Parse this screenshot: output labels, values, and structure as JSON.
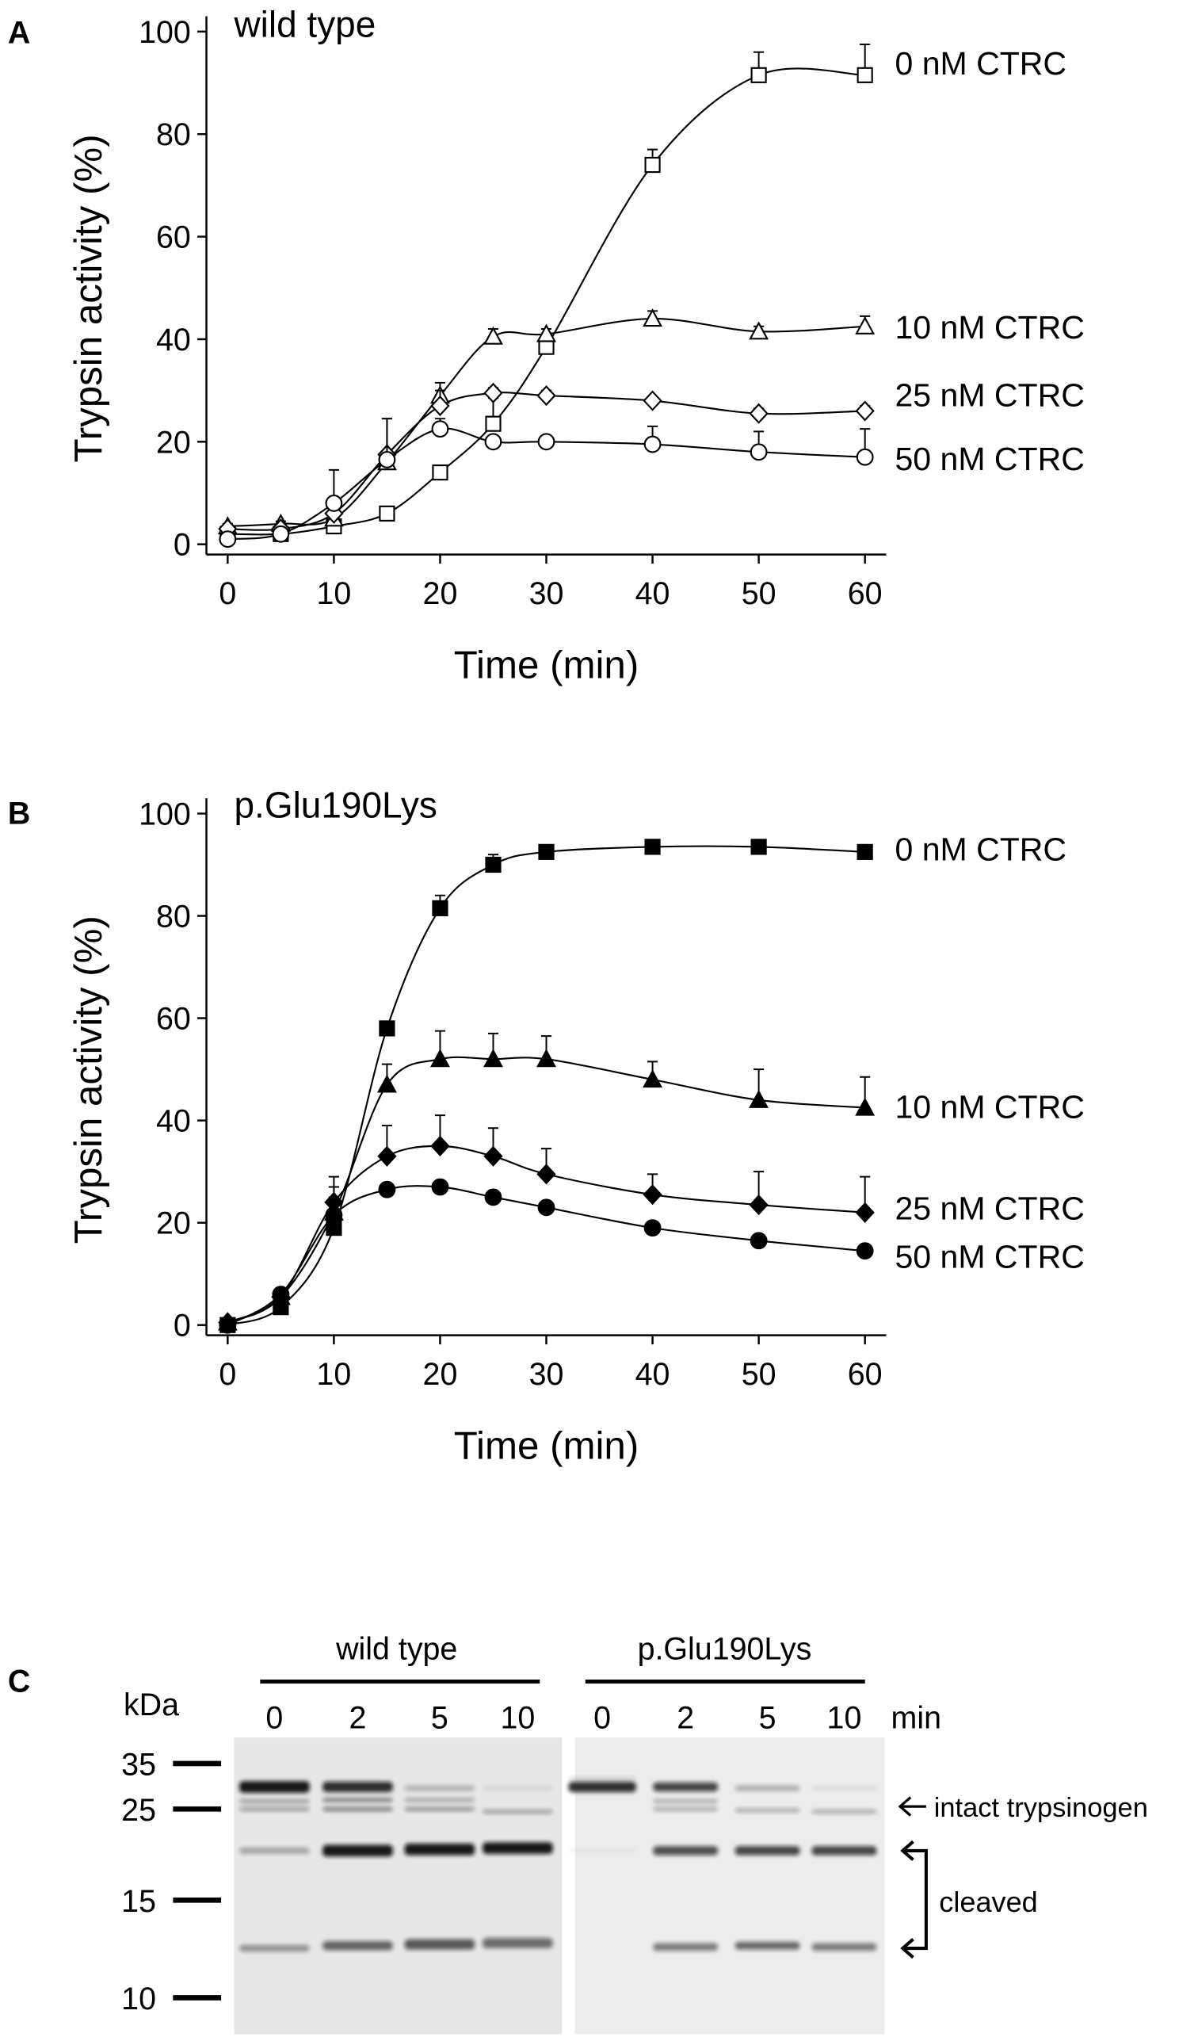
{
  "chart_data": [
    {
      "type": "line",
      "panel": "A",
      "title": "wild type",
      "x": [
        0,
        5,
        10,
        15,
        20,
        25,
        30,
        40,
        50,
        60
      ],
      "xlabel": "Time (min)",
      "ylabel": "Trypsin activity (%)",
      "xlim": [
        -2,
        62
      ],
      "ylim": [
        -2,
        103
      ],
      "xticks": [
        0,
        10,
        20,
        30,
        40,
        50,
        60
      ],
      "yticks": [
        0,
        20,
        40,
        60,
        80,
        100
      ],
      "filled": false,
      "series": [
        {
          "name": "0 nM CTRC",
          "color": "#000000",
          "marker": "square",
          "values": [
            2,
            2,
            3.5,
            6,
            14,
            23.5,
            38.5,
            74,
            91.5,
            91.5
          ],
          "errors": [
            0.5,
            0.5,
            0.5,
            0.5,
            1,
            5,
            1.5,
            3,
            4.5,
            6
          ]
        },
        {
          "name": "10 nM CTRC",
          "color": "#000000",
          "marker": "triangle",
          "values": [
            3.5,
            4,
            5,
            16,
            29,
            40.5,
            41,
            44,
            41.5,
            42.5
          ],
          "errors": [
            0.5,
            0.5,
            1,
            2,
            2.5,
            1.5,
            1,
            1.5,
            1,
            2
          ]
        },
        {
          "name": "25 nM CTRC",
          "color": "#000000",
          "marker": "diamond",
          "values": [
            3,
            3,
            6,
            17.5,
            27,
            29.5,
            29,
            28,
            25.5,
            26
          ],
          "errors": [
            0.5,
            0.5,
            2,
            7,
            3,
            1,
            1,
            0.5,
            1,
            1
          ]
        },
        {
          "name": "50 nM CTRC",
          "color": "#000000",
          "marker": "circle",
          "values": [
            1,
            2,
            8,
            16.5,
            22.5,
            20,
            20,
            19.5,
            18,
            17
          ],
          "errors": [
            0.5,
            0.5,
            6.5,
            8,
            2,
            1,
            1,
            3.5,
            4,
            5.5
          ]
        }
      ]
    },
    {
      "type": "line",
      "panel": "B",
      "title": "p.Glu190Lys",
      "x": [
        0,
        5,
        10,
        15,
        20,
        25,
        30,
        40,
        50,
        60
      ],
      "xlabel": "Time (min)",
      "ylabel": "Trypsin activity (%)",
      "xlim": [
        -2,
        62
      ],
      "ylim": [
        -2,
        103
      ],
      "xticks": [
        0,
        10,
        20,
        30,
        40,
        50,
        60
      ],
      "yticks": [
        0,
        20,
        40,
        60,
        80,
        100
      ],
      "filled": true,
      "series": [
        {
          "name": "0 nM CTRC",
          "color": "#000000",
          "marker": "square",
          "values": [
            0,
            3.5,
            19,
            58,
            81.5,
            90,
            92.5,
            93.5,
            93.5,
            92.5
          ],
          "errors": [
            0.5,
            0.5,
            1,
            1,
            2.5,
            2,
            0.5,
            0.5,
            0.5,
            0.5
          ]
        },
        {
          "name": "10 nM CTRC",
          "color": "#000000",
          "marker": "triangle",
          "values": [
            0.5,
            5.5,
            22,
            47,
            52,
            52,
            52,
            48,
            44,
            42.5
          ],
          "errors": [
            0.5,
            0.5,
            3,
            4,
            5.5,
            5,
            4.5,
            3.5,
            6,
            6
          ]
        },
        {
          "name": "25 nM CTRC",
          "color": "#000000",
          "marker": "diamond",
          "values": [
            0.5,
            5.5,
            24,
            33,
            35,
            33,
            29.5,
            25.5,
            23.5,
            22
          ],
          "errors": [
            0.5,
            0.5,
            3,
            6,
            6,
            5.5,
            5,
            4,
            6.5,
            7
          ]
        },
        {
          "name": "50 nM CTRC",
          "color": "#000000",
          "marker": "circle",
          "values": [
            0,
            6,
            21.5,
            26.5,
            27,
            25,
            23,
            19,
            16.5,
            14.5
          ],
          "errors": [
            0.5,
            0.5,
            7.5,
            1,
            1,
            1,
            1,
            1,
            1,
            1
          ]
        }
      ]
    }
  ],
  "gel": {
    "panel": "C",
    "kda_label": "kDa",
    "unit": "min",
    "groups": [
      {
        "label": "wild type",
        "lanes": [
          "0",
          "2",
          "5",
          "10"
        ]
      },
      {
        "label": "p.Glu190Lys",
        "lanes": [
          "0",
          "2",
          "5",
          "10"
        ]
      }
    ],
    "markers": [
      35,
      25,
      15,
      10
    ],
    "annotations": [
      "intact trypsinogen",
      "cleaved"
    ]
  }
}
